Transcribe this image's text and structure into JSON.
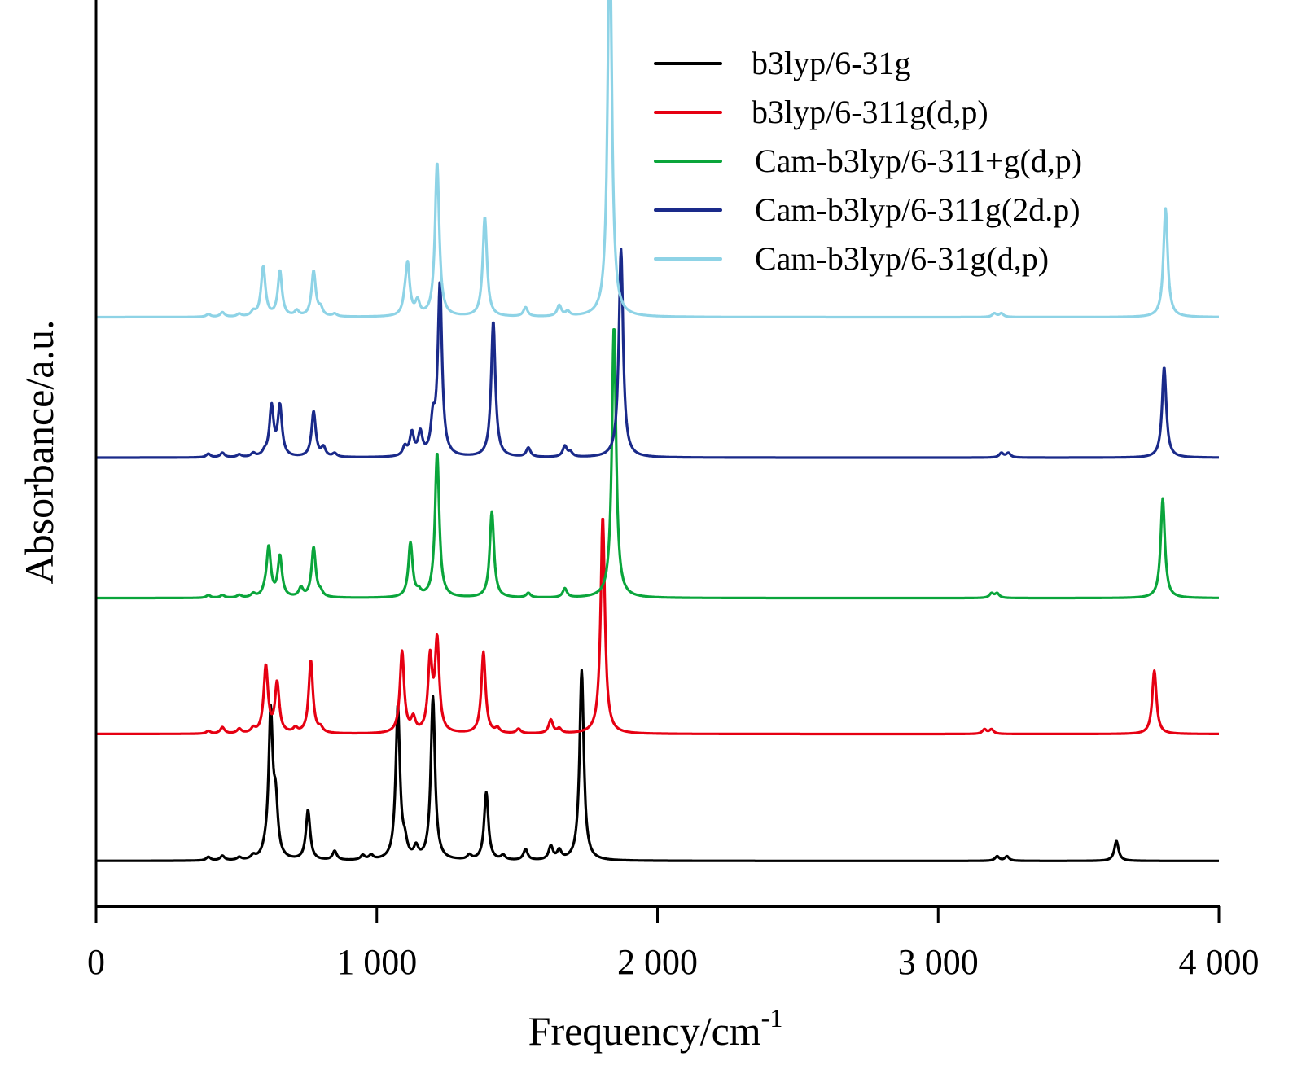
{
  "chart_data": {
    "type": "line",
    "title": "",
    "xlabel": "Frequency/cm",
    "xlabel_superscript": "-1",
    "ylabel": "Absorbance/a.u.",
    "xlim": [
      0,
      4000
    ],
    "ylim": [
      0,
      10
    ],
    "xticks": [
      0,
      1000,
      2000,
      3000,
      4000
    ],
    "xtick_labels": [
      "0",
      "1 000",
      "2 000",
      "3 000",
      "4 000"
    ],
    "yticks_shown": false,
    "grid": false,
    "legend_position": "top-right",
    "linewidth_note": "stacked spectra with vertical offsets",
    "series": [
      {
        "name": "b3lyp/6-31g",
        "color": "#000000",
        "offset": 0.5,
        "peaks": [
          [
            400,
            0.04
          ],
          [
            450,
            0.05
          ],
          [
            510,
            0.03
          ],
          [
            560,
            0.04
          ],
          [
            600,
            0.04
          ],
          [
            622,
            1.6
          ],
          [
            640,
            0.55
          ],
          [
            755,
            0.55
          ],
          [
            850,
            0.1
          ],
          [
            950,
            0.05
          ],
          [
            980,
            0.05
          ],
          [
            1075,
            1.7
          ],
          [
            1100,
            0.15
          ],
          [
            1140,
            0.12
          ],
          [
            1200,
            1.8
          ],
          [
            1330,
            0.05
          ],
          [
            1390,
            0.75
          ],
          [
            1450,
            0.05
          ],
          [
            1530,
            0.12
          ],
          [
            1620,
            0.15
          ],
          [
            1650,
            0.1
          ],
          [
            1730,
            2.1
          ],
          [
            3210,
            0.05
          ],
          [
            3245,
            0.05
          ],
          [
            3635,
            0.22
          ]
        ]
      },
      {
        "name": "b3lyp/6-311g(d,p)",
        "color": "#e60012",
        "offset": 1.9,
        "peaks": [
          [
            400,
            0.03
          ],
          [
            450,
            0.07
          ],
          [
            510,
            0.05
          ],
          [
            560,
            0.05
          ],
          [
            600,
            0.05
          ],
          [
            605,
            0.7
          ],
          [
            645,
            0.55
          ],
          [
            710,
            0.05
          ],
          [
            765,
            0.8
          ],
          [
            800,
            0.05
          ],
          [
            1090,
            0.9
          ],
          [
            1130,
            0.15
          ],
          [
            1190,
            0.8
          ],
          [
            1215,
            1.0
          ],
          [
            1380,
            0.9
          ],
          [
            1430,
            0.05
          ],
          [
            1505,
            0.05
          ],
          [
            1620,
            0.15
          ],
          [
            1650,
            0.05
          ],
          [
            1805,
            2.4
          ],
          [
            3165,
            0.05
          ],
          [
            3190,
            0.05
          ],
          [
            3770,
            0.7
          ]
        ]
      },
      {
        "name": "Cam-b3lyp/6-311+g(d,p)",
        "color": "#0aa53b",
        "offset": 3.4,
        "peaks": [
          [
            400,
            0.03
          ],
          [
            450,
            0.03
          ],
          [
            510,
            0.03
          ],
          [
            560,
            0.04
          ],
          [
            600,
            0.04
          ],
          [
            615,
            0.55
          ],
          [
            655,
            0.45
          ],
          [
            730,
            0.1
          ],
          [
            775,
            0.55
          ],
          [
            800,
            0.05
          ],
          [
            1120,
            0.6
          ],
          [
            1150,
            0.05
          ],
          [
            1215,
            1.6
          ],
          [
            1410,
            0.95
          ],
          [
            1540,
            0.05
          ],
          [
            1670,
            0.1
          ],
          [
            1845,
            3.0
          ],
          [
            3190,
            0.05
          ],
          [
            3210,
            0.05
          ],
          [
            3800,
            1.1
          ]
        ]
      },
      {
        "name": "Cam-b3lyp/6-311g(2d.p)",
        "color": "#1a2a8a",
        "offset": 4.95,
        "peaks": [
          [
            400,
            0.04
          ],
          [
            450,
            0.05
          ],
          [
            510,
            0.03
          ],
          [
            560,
            0.04
          ],
          [
            600,
            0.04
          ],
          [
            625,
            0.55
          ],
          [
            655,
            0.55
          ],
          [
            775,
            0.5
          ],
          [
            810,
            0.1
          ],
          [
            850,
            0.04
          ],
          [
            1100,
            0.1
          ],
          [
            1125,
            0.25
          ],
          [
            1155,
            0.25
          ],
          [
            1200,
            0.35
          ],
          [
            1225,
            1.9
          ],
          [
            1415,
            1.5
          ],
          [
            1540,
            0.1
          ],
          [
            1670,
            0.12
          ],
          [
            1690,
            0.05
          ],
          [
            1870,
            2.3
          ],
          [
            3225,
            0.05
          ],
          [
            3250,
            0.05
          ],
          [
            3805,
            1.0
          ]
        ]
      },
      {
        "name": "Cam-b3lyp/6-31g(d,p)",
        "color": "#8ed3e6",
        "offset": 6.5,
        "peaks": [
          [
            400,
            0.03
          ],
          [
            450,
            0.05
          ],
          [
            510,
            0.03
          ],
          [
            560,
            0.05
          ],
          [
            600,
            0.06
          ],
          [
            595,
            0.5
          ],
          [
            655,
            0.5
          ],
          [
            715,
            0.06
          ],
          [
            775,
            0.5
          ],
          [
            800,
            0.08
          ],
          [
            850,
            0.03
          ],
          [
            1100,
            0.1
          ],
          [
            1110,
            0.55
          ],
          [
            1145,
            0.15
          ],
          [
            1215,
            1.7
          ],
          [
            1385,
            1.1
          ],
          [
            1530,
            0.1
          ],
          [
            1650,
            0.12
          ],
          [
            1680,
            0.05
          ],
          [
            1830,
            4.3
          ],
          [
            3200,
            0.04
          ],
          [
            3225,
            0.04
          ],
          [
            3810,
            1.2
          ]
        ]
      }
    ]
  }
}
